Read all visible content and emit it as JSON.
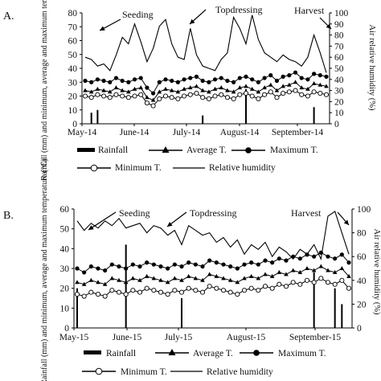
{
  "chart_data": [
    {
      "type": "line",
      "panel_label": "A.",
      "ylabel_left": "Rainfall (mm) and minimum, average and maximum temperature (°C)",
      "ylabel_right": "Air relative humidity (%)",
      "ylim_left": [
        0,
        80
      ],
      "ylim_right": [
        0,
        100
      ],
      "yticks_left": [
        "0",
        "10",
        "20",
        "30",
        "40",
        "50",
        "60",
        "70",
        "80"
      ],
      "yticks_right": [
        "0",
        "10",
        "20",
        "30",
        "40",
        "50",
        "60",
        "70",
        "80",
        "90",
        "100"
      ],
      "xticks": [
        "May-14",
        "June-14",
        "July-14",
        "August-14",
        "September-14"
      ],
      "annotations": [
        "Seeding",
        "Topdressing",
        "Harvest"
      ],
      "legend": {
        "rainfall": "Rainfall",
        "average": "Average T.",
        "maximum": "Maximum T.",
        "minimum": "Minimum T.",
        "humidity": "Relative humidity"
      },
      "series": [
        {
          "key": "maximum",
          "values": [
            31,
            30,
            32,
            31,
            30,
            33,
            31,
            30,
            32,
            33,
            26,
            22,
            30,
            32,
            31,
            30,
            32,
            33,
            34,
            31,
            30,
            32,
            33,
            31,
            30,
            33,
            34,
            32,
            30,
            33,
            35,
            31,
            34,
            35,
            37,
            33,
            32,
            36,
            35,
            34
          ]
        },
        {
          "key": "average",
          "values": [
            24,
            23,
            25,
            24,
            23,
            26,
            24,
            23,
            25,
            26,
            19,
            17,
            23,
            25,
            24,
            23,
            25,
            26,
            27,
            24,
            23,
            25,
            26,
            24,
            23,
            26,
            27,
            25,
            23,
            26,
            28,
            24,
            27,
            28,
            30,
            26,
            25,
            29,
            28,
            27
          ]
        },
        {
          "key": "minimum",
          "values": [
            20,
            19,
            21,
            20,
            19,
            21,
            20,
            19,
            20,
            21,
            15,
            13,
            18,
            20,
            19,
            18,
            20,
            21,
            22,
            19,
            18,
            20,
            21,
            19,
            18,
            21,
            22,
            20,
            18,
            21,
            23,
            19,
            22,
            23,
            24,
            21,
            20,
            23,
            22,
            21
          ]
        },
        {
          "key": "humidity",
          "values": [
            60,
            58,
            52,
            54,
            48,
            62,
            78,
            72,
            90,
            74,
            56,
            68,
            88,
            94,
            72,
            60,
            58,
            86,
            62,
            52,
            50,
            48,
            58,
            64,
            96,
            86,
            72,
            98,
            76,
            64,
            60,
            56,
            62,
            58,
            56,
            52,
            60,
            80,
            64,
            46
          ]
        },
        {
          "key": "rainfall",
          "values": [
            0,
            8,
            10,
            0,
            0,
            0,
            0,
            0,
            0,
            0,
            0,
            0,
            0,
            0,
            0,
            0,
            0,
            0,
            0,
            6,
            0,
            0,
            0,
            0,
            0,
            0,
            25,
            0,
            0,
            0,
            0,
            0,
            0,
            0,
            0,
            0,
            0,
            12,
            0,
            0
          ]
        }
      ]
    },
    {
      "type": "line",
      "panel_label": "B.",
      "ylabel_left": "Rainfall (mm) and minimum, average and maximum temperature (°C)",
      "ylabel_right": "Air relative humidity (%)",
      "ylim_left": [
        0,
        60
      ],
      "ylim_right": [
        0,
        100
      ],
      "yticks_left": [
        "0",
        "10",
        "20",
        "30",
        "40",
        "50",
        "60"
      ],
      "yticks_right": [
        "0",
        "20",
        "40",
        "60",
        "80",
        "100"
      ],
      "xticks": [
        "May-15",
        "June-15",
        "July-15",
        "August-15",
        "September-15"
      ],
      "annotations": [
        "Seeding",
        "Topdressing",
        "Harvest"
      ],
      "legend": {
        "rainfall": "Rainfall",
        "average": "Average T.",
        "maximum": "Maximum T.",
        "minimum": "Minimum T.",
        "humidity": "Relative humidity"
      },
      "series": [
        {
          "key": "maximum",
          "values": [
            30,
            28,
            31,
            30,
            29,
            32,
            31,
            30,
            32,
            31,
            33,
            32,
            31,
            30,
            32,
            31,
            33,
            32,
            31,
            34,
            33,
            32,
            31,
            30,
            32,
            33,
            32,
            34,
            33,
            35,
            34,
            36,
            35,
            37,
            36,
            38,
            36,
            35,
            37,
            33
          ]
        },
        {
          "key": "average",
          "values": [
            23,
            22,
            24,
            23,
            22,
            25,
            24,
            23,
            25,
            24,
            26,
            25,
            24,
            23,
            25,
            24,
            26,
            25,
            24,
            27,
            26,
            25,
            24,
            23,
            25,
            26,
            25,
            27,
            26,
            28,
            27,
            29,
            28,
            30,
            29,
            31,
            29,
            28,
            30,
            26
          ]
        },
        {
          "key": "minimum",
          "values": [
            17,
            16,
            18,
            17,
            16,
            19,
            18,
            17,
            19,
            18,
            20,
            19,
            18,
            17,
            19,
            18,
            20,
            19,
            18,
            21,
            20,
            19,
            18,
            17,
            19,
            20,
            19,
            21,
            20,
            22,
            21,
            23,
            22,
            24,
            23,
            25,
            23,
            22,
            24,
            20
          ]
        },
        {
          "key": "humidity",
          "values": [
            90,
            82,
            88,
            84,
            90,
            86,
            92,
            84,
            86,
            88,
            80,
            86,
            84,
            78,
            82,
            70,
            86,
            82,
            78,
            80,
            72,
            76,
            68,
            74,
            62,
            70,
            66,
            72,
            60,
            68,
            64,
            58,
            66,
            62,
            70,
            58,
            94,
            98,
            80,
            62
          ]
        },
        {
          "key": "rainfall",
          "values": [
            20,
            0,
            0,
            0,
            0,
            0,
            0,
            42,
            0,
            0,
            0,
            0,
            0,
            0,
            0,
            15,
            0,
            0,
            0,
            0,
            0,
            0,
            0,
            0,
            0,
            0,
            0,
            0,
            0,
            0,
            0,
            0,
            0,
            0,
            28,
            0,
            0,
            20,
            12,
            0
          ]
        }
      ]
    }
  ]
}
